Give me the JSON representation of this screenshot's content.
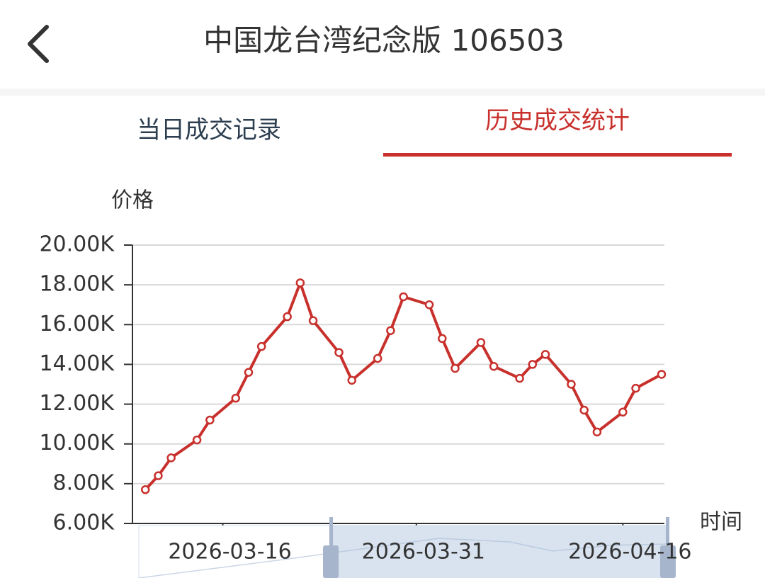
{
  "header": {
    "title": "中国龙台湾纪念版 106503"
  },
  "tabs": [
    "当日成交记录",
    "历史成交统计"
  ],
  "active_tab": 1,
  "chart_data": {
    "type": "line",
    "y_axis_label": "价格",
    "x_axis_label": "时间",
    "x": [
      "2026-03-10",
      "2026-03-11",
      "2026-03-12",
      "2026-03-14",
      "2026-03-15",
      "2026-03-17",
      "2026-03-18",
      "2026-03-19",
      "2026-03-21",
      "2026-03-22",
      "2026-03-23",
      "2026-03-25",
      "2026-03-26",
      "2026-03-28",
      "2026-03-29",
      "2026-03-30",
      "2026-04-01",
      "2026-04-02",
      "2026-04-03",
      "2026-04-05",
      "2026-04-06",
      "2026-04-08",
      "2026-04-09",
      "2026-04-10",
      "2026-04-12",
      "2026-04-13",
      "2026-04-14",
      "2026-04-16",
      "2026-04-17",
      "2026-04-19"
    ],
    "series": [
      {
        "color": "#c8302c",
        "values": [
          7700,
          8400,
          9300,
          10200,
          11200,
          12300,
          13600,
          14900,
          16400,
          18100,
          16200,
          14600,
          13200,
          14300,
          15700,
          17400,
          17000,
          15300,
          13800,
          15100,
          13900,
          13300,
          14000,
          14500,
          13000,
          11700,
          10600,
          11600,
          12800,
          13500
        ]
      }
    ],
    "xlim": [
      "2026-03-09",
      "2026-04-19"
    ],
    "xticks": [
      "2026-03-16",
      "2026-03-31",
      "2026-04-16"
    ],
    "ylim": [
      6000,
      20000
    ],
    "yticks": [
      {
        "value": 6000,
        "label": "6.00K"
      },
      {
        "value": 8000,
        "label": "8.00K"
      },
      {
        "value": 10000,
        "label": "10.00K"
      },
      {
        "value": 12000,
        "label": "12.00K"
      },
      {
        "value": 14000,
        "label": "14.00K"
      },
      {
        "value": 16000,
        "label": "16.00K"
      },
      {
        "value": 18000,
        "label": "18.00K"
      },
      {
        "value": 20000,
        "label": "20.00K"
      }
    ],
    "grid": true
  }
}
